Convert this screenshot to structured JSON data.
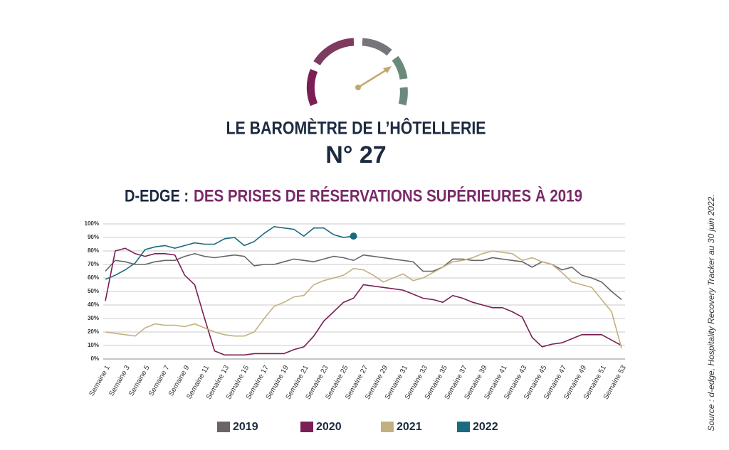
{
  "header": {
    "title": "LE BAROMÈTRE DE L’HÔTELLERIE",
    "issue": "N° 27",
    "subtitle_lead": "D-EDGE :",
    "subtitle": "DES PRISES DE RÉSERVATIONS SUPÉRIEURES À 2019"
  },
  "source": "Source : d-edge, Hospitality Recovery Tracker au 30 juin 2022.",
  "chart_data": {
    "type": "line",
    "categories": [
      "Semaine 1",
      null,
      "Semaine 3",
      null,
      "Semaine 5",
      null,
      "Semaine 7",
      null,
      "Semaine 9",
      null,
      "Semaine 11",
      null,
      "Semaine 13",
      null,
      "Semaine 15",
      null,
      "Semaine 17",
      null,
      "Semaine 19",
      null,
      "Semaine 21",
      null,
      "Semaine 23",
      null,
      "Semaine 25",
      null,
      "Semaine 27",
      null,
      "Semaine 29",
      null,
      "Semaine 31",
      null,
      "Semaine 33",
      null,
      "Semaine 35",
      null,
      "Semaine 37",
      null,
      "Semaine 39",
      null,
      "Semaine 41",
      null,
      "Semaine 43",
      null,
      "Semaine 45",
      null,
      "Semaine 47",
      null,
      "Semaine 49",
      null,
      "Semaine 51",
      null,
      "Semaine 53"
    ],
    "series": [
      {
        "name": "2019",
        "color": "#6b6466",
        "values": [
          65,
          73,
          72,
          70,
          70,
          72,
          73,
          73,
          76,
          78,
          76,
          75,
          76,
          77,
          76,
          69,
          70,
          70,
          72,
          74,
          73,
          72,
          74,
          76,
          75,
          73,
          77,
          76,
          75,
          74,
          73,
          72,
          65,
          65,
          68,
          74,
          74,
          73,
          73,
          75,
          74,
          73,
          72,
          68,
          72,
          70,
          66,
          68,
          62,
          60,
          57,
          50,
          44
        ]
      },
      {
        "name": "2020",
        "color": "#7a1e55",
        "values": [
          43,
          80,
          82,
          78,
          76,
          78,
          78,
          77,
          62,
          55,
          30,
          6,
          3,
          3,
          3,
          4,
          4,
          4,
          4,
          7,
          9,
          17,
          28,
          35,
          42,
          45,
          55,
          54,
          53,
          52,
          51,
          48,
          45,
          44,
          42,
          47,
          45,
          42,
          40,
          38,
          38,
          35,
          31,
          16,
          9,
          11,
          12,
          15,
          18,
          18,
          18,
          14,
          10
        ]
      },
      {
        "name": "2021",
        "color": "#c2b07e",
        "values": [
          20,
          19,
          18,
          17,
          23,
          26,
          25,
          25,
          24,
          26,
          23,
          20,
          18,
          17,
          17,
          20,
          30,
          39,
          42,
          46,
          47,
          55,
          58,
          60,
          62,
          67,
          66,
          62,
          57,
          60,
          63,
          58,
          60,
          64,
          68,
          72,
          73,
          75,
          78,
          80,
          79,
          78,
          73,
          75,
          72,
          70,
          64,
          57,
          55,
          53,
          44,
          35,
          8
        ]
      },
      {
        "name": "2022",
        "color": "#1b6a7e",
        "marker_last": true,
        "values": [
          59,
          62,
          66,
          71,
          81,
          83,
          84,
          82,
          84,
          86,
          85,
          85,
          89,
          90,
          84,
          87,
          93,
          98,
          97,
          96,
          91,
          97,
          97,
          92,
          90,
          91,
          null,
          null,
          null,
          null,
          null,
          null,
          null,
          null,
          null,
          null,
          null,
          null,
          null,
          null,
          null,
          null,
          null,
          null,
          null,
          null,
          null,
          null,
          null,
          null,
          null,
          null,
          null
        ]
      }
    ],
    "ylim": [
      0,
      100
    ],
    "yticks": [
      {
        "value": 0,
        "label": "0%"
      },
      {
        "value": 10,
        "label": "10%"
      },
      {
        "value": 20,
        "label": "20%"
      },
      {
        "value": 30,
        "label": "30%"
      },
      {
        "value": 40,
        "label": "40%"
      },
      {
        "value": 50,
        "label": "50%"
      },
      {
        "value": 60,
        "label": "60%"
      },
      {
        "value": 70,
        "label": "70%"
      },
      {
        "value": 80,
        "label": "80%"
      },
      {
        "value": 90,
        "label": "90%"
      },
      {
        "value": 100,
        "label": "100%"
      }
    ],
    "grid": true
  }
}
